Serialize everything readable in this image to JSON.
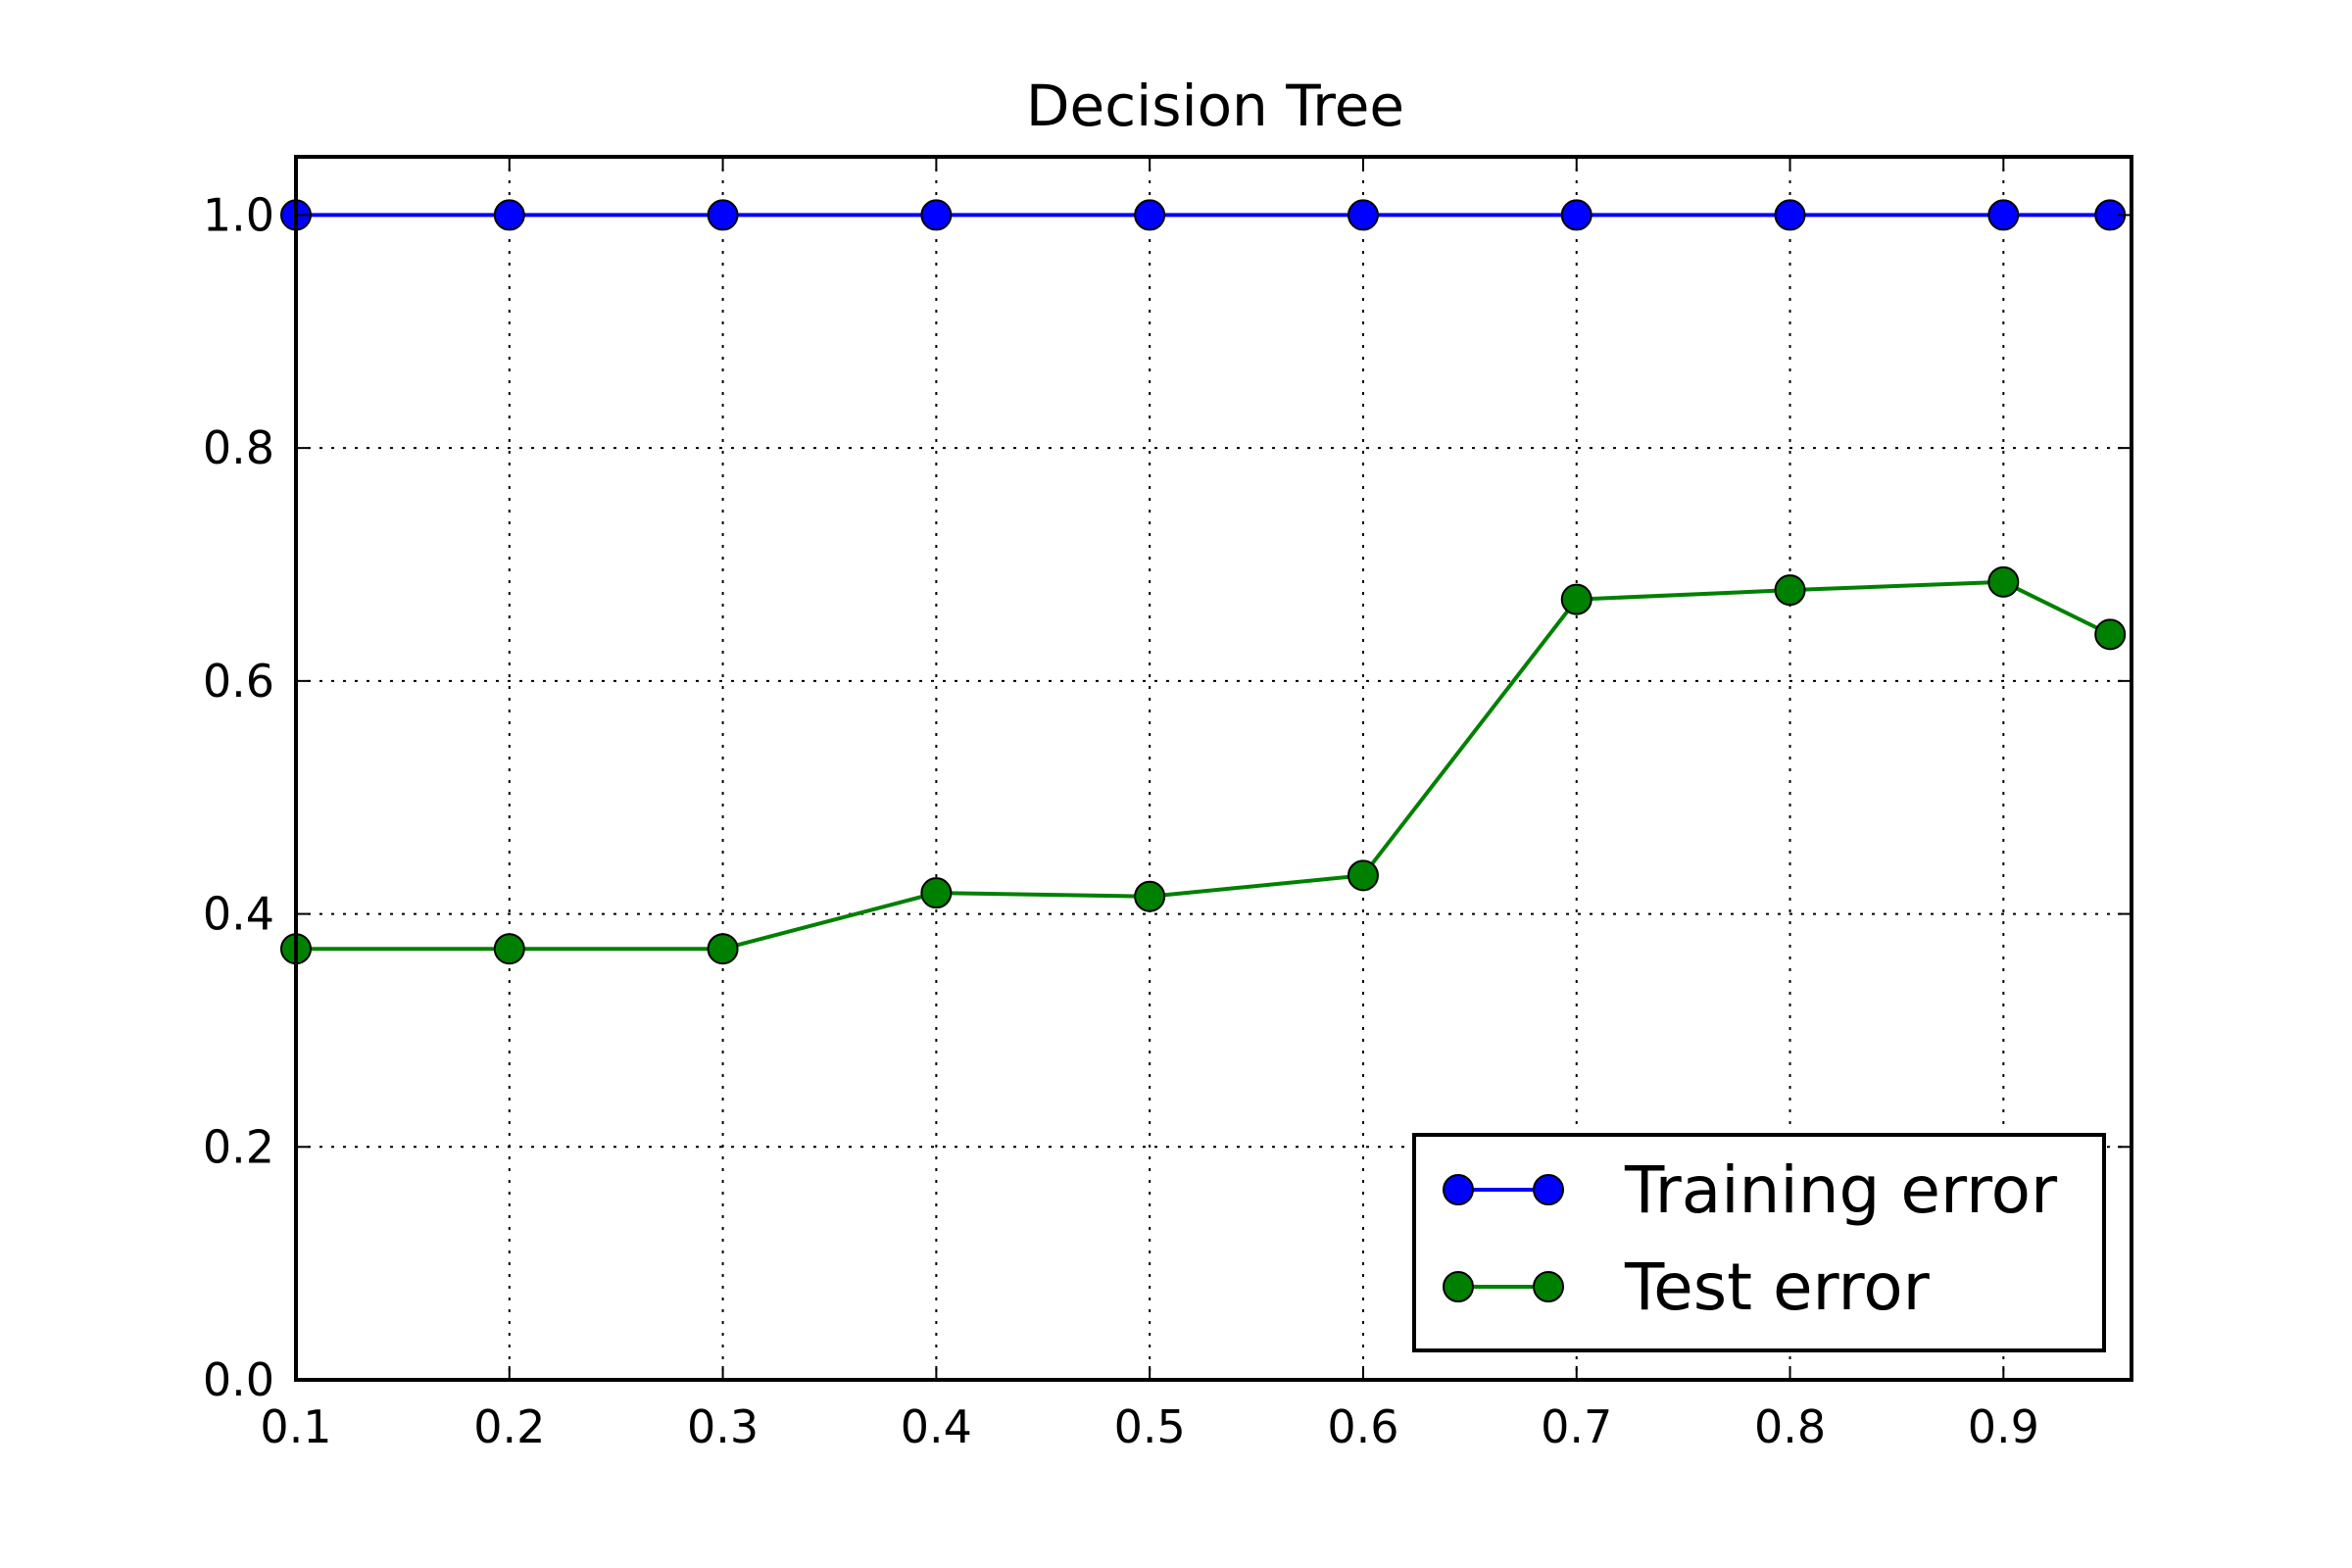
{
  "chart_data": {
    "type": "line",
    "title": "Decision Tree",
    "xlabel": "",
    "ylabel": "",
    "xlim": [
      0.1,
      0.96
    ],
    "ylim": [
      0.0,
      1.05
    ],
    "grid": true,
    "legend_placement": "lower-right",
    "x_ticks": [
      "0.1",
      "0.2",
      "0.3",
      "0.4",
      "0.5",
      "0.6",
      "0.7",
      "0.8",
      "0.9"
    ],
    "x_tick_values": [
      0.1,
      0.2,
      0.3,
      0.4,
      0.5,
      0.6,
      0.7,
      0.8,
      0.9
    ],
    "y_ticks": [
      "0.0",
      "0.2",
      "0.4",
      "0.6",
      "0.8",
      "1.0"
    ],
    "y_tick_values": [
      0.0,
      0.2,
      0.4,
      0.6,
      0.8,
      1.0
    ],
    "x": [
      0.1,
      0.2,
      0.3,
      0.4,
      0.5,
      0.6,
      0.7,
      0.8,
      0.9,
      0.95
    ],
    "series": [
      {
        "name": "Training error",
        "color": "#0000ff",
        "values": [
          1.0,
          1.0,
          1.0,
          1.0,
          1.0,
          1.0,
          1.0,
          1.0,
          1.0,
          1.0
        ]
      },
      {
        "name": "Test error",
        "color": "#008000",
        "values": [
          0.37,
          0.37,
          0.37,
          0.418,
          0.415,
          0.433,
          0.67,
          0.678,
          0.685,
          0.64
        ]
      }
    ]
  }
}
